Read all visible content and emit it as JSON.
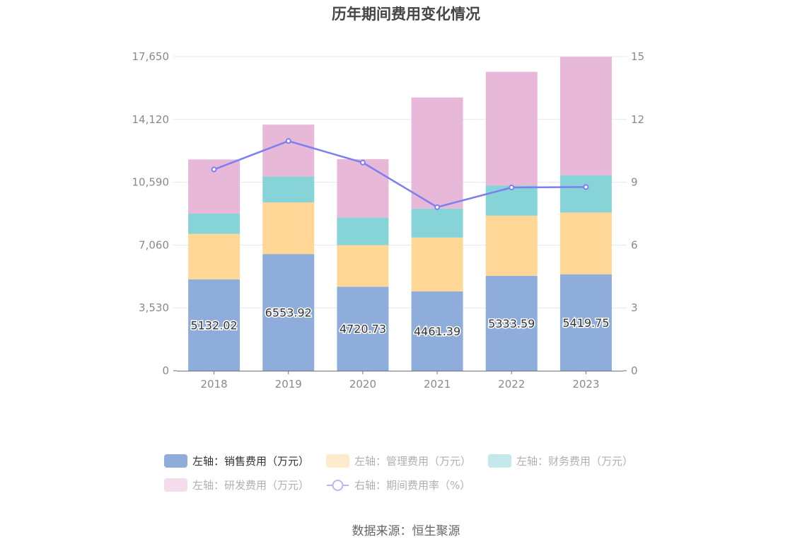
{
  "chart_data": {
    "type": "bar",
    "stacked": true,
    "title": "历年期间费用变化情况",
    "categories": [
      "2018",
      "2019",
      "2020",
      "2021",
      "2022",
      "2023"
    ],
    "left_axis": {
      "ticks": [
        "0",
        "3,530",
        "7,060",
        "10,590",
        "14,120",
        "17,650"
      ],
      "ylim": [
        0,
        17650
      ]
    },
    "right_axis": {
      "ticks": [
        "0",
        "3",
        "6",
        "9",
        "12",
        "15"
      ],
      "ylim": [
        0,
        15
      ]
    },
    "grid": true,
    "legend_position": "bottom",
    "series": [
      {
        "name": "左轴：销售费用（万元）",
        "axis": "left",
        "type": "bar",
        "color": "#8eaddb",
        "values": [
          5132.02,
          6553.92,
          4720.73,
          4461.39,
          5333.59,
          5419.75
        ],
        "show_labels": true
      },
      {
        "name": "左轴：管理费用（万元）",
        "axis": "left",
        "type": "bar",
        "color": "#fed797",
        "values": [
          2556,
          2902,
          2333,
          3021,
          3379,
          3470
        ],
        "show_labels": false
      },
      {
        "name": "左轴：财务费用（万元）",
        "axis": "left",
        "type": "bar",
        "color": "#86d4d8",
        "values": [
          1141,
          1459,
          1562,
          1630,
          1697,
          2095
        ],
        "show_labels": false
      },
      {
        "name": "左轴：研发费用（万元）",
        "axis": "left",
        "type": "bar",
        "color": "#e7b8d8",
        "values": [
          3041,
          2914,
          3271,
          6241,
          6384,
          6650
        ],
        "show_labels": false
      },
      {
        "name": "右轴：期间费用率（%）",
        "axis": "right",
        "type": "line",
        "color": "#7b7ff0",
        "values": [
          9.61,
          10.97,
          9.94,
          7.81,
          8.75,
          8.77
        ],
        "show_labels": false
      }
    ]
  },
  "legend": {
    "items": [
      {
        "label": "左轴：销售费用（万元）",
        "color": "#8eaddb",
        "active": true
      },
      {
        "label": "左轴：管理费用（万元）",
        "color": "#feebcb",
        "active": false
      },
      {
        "label": "左轴：财务费用（万元）",
        "color": "#c3e9ec",
        "active": false
      },
      {
        "label": "左轴：研发费用（万元）",
        "color": "#f3dcec",
        "active": false
      },
      {
        "label": "右轴：期间费用率（%）",
        "color": "#b6b8f5",
        "active": false
      }
    ]
  },
  "footer": {
    "source": "数据来源：恒生聚源"
  }
}
